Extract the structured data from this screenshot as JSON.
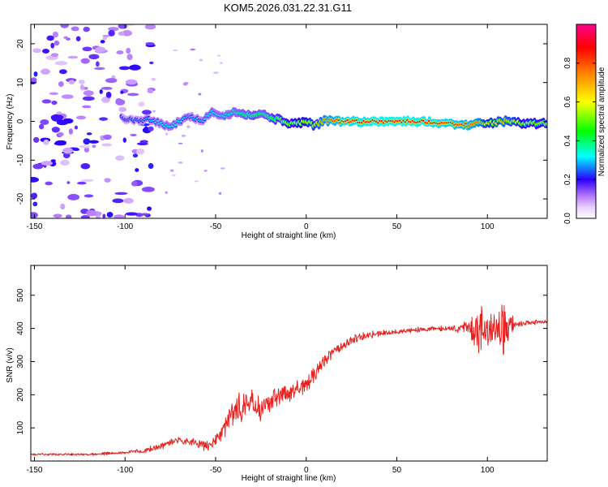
{
  "figure_title": "KOM5.2026.031.22.31.G11",
  "chart_data": [
    {
      "type": "heatmap",
      "title": "KOM5.2026.031.22.31.G11",
      "xlabel": "Height of straight line (km)",
      "ylabel": "Frequency (Hz)",
      "xlim": [
        -152,
        133
      ],
      "ylim": [
        -25,
        25
      ],
      "xticks": [
        -150,
        -100,
        -50,
        0,
        50,
        100
      ],
      "yticks": [
        -20,
        -10,
        0,
        10,
        20
      ],
      "xtick_labels": [
        "-150",
        "-100",
        "-50",
        "0",
        "50",
        "100"
      ],
      "ytick_labels": [
        "-20",
        "-10",
        "0",
        "10",
        "20"
      ],
      "colorbar": {
        "label": "Normalized spectral amplitude",
        "range": [
          0,
          1
        ],
        "ticks": [
          0,
          0.2,
          0.4,
          0.6,
          0.8
        ],
        "tick_labels": [
          "0.0",
          "0.2",
          "0.4",
          "0.6",
          "0.8"
        ],
        "stops": [
          {
            "v": 0.0,
            "color": "#ffffff"
          },
          {
            "v": 0.06,
            "color": "#e6ccff"
          },
          {
            "v": 0.12,
            "color": "#b070ff"
          },
          {
            "v": 0.2,
            "color": "#2a00ff"
          },
          {
            "v": 0.32,
            "color": "#00ffff"
          },
          {
            "v": 0.45,
            "color": "#00ff00"
          },
          {
            "v": 0.6,
            "color": "#ffff00"
          },
          {
            "v": 0.75,
            "color": "#ff7f00"
          },
          {
            "v": 0.88,
            "color": "#ff0000"
          },
          {
            "v": 1.0,
            "color": "#ff0090"
          }
        ]
      },
      "ridge": {
        "x": [
          -102,
          -95,
          -85,
          -75,
          -65,
          -58,
          -52,
          -45,
          -40,
          -35,
          -30,
          -25,
          -20,
          -15,
          -10,
          -5,
          0,
          5,
          10,
          20,
          40,
          60,
          80,
          90,
          95,
          100,
          110,
          120,
          133
        ],
        "freq": [
          1.0,
          0.3,
          0.5,
          -1.5,
          1.5,
          0.0,
          2.5,
          1.5,
          2.5,
          2.0,
          1.5,
          2.0,
          1.0,
          0.5,
          -0.5,
          -0.5,
          0.0,
          -1.0,
          0.3,
          0.0,
          0.0,
          0.0,
          -0.5,
          -1.0,
          -0.5,
          -0.5,
          0.0,
          -0.5,
          -0.5
        ],
        "amplitude": [
          0.25,
          0.25,
          0.3,
          0.35,
          0.3,
          0.3,
          0.35,
          0.35,
          0.38,
          0.4,
          0.45,
          0.4,
          0.45,
          0.5,
          0.55,
          0.55,
          0.6,
          0.65,
          0.75,
          0.85,
          0.9,
          0.9,
          0.85,
          0.8,
          0.75,
          0.6,
          0.7,
          0.55,
          0.55
        ]
      },
      "noise_region": {
        "x_range": [
          -152,
          -85
        ],
        "freq_range": [
          -25,
          25
        ],
        "amplitude_range": [
          0.06,
          0.22
        ]
      }
    },
    {
      "type": "line",
      "xlabel": "Height of straight line (km)",
      "ylabel": "SNR (v/v)",
      "xlim": [
        -152,
        133
      ],
      "ylim": [
        0,
        590
      ],
      "xticks": [
        -150,
        -100,
        -50,
        0,
        50,
        100
      ],
      "yticks": [
        100,
        200,
        300,
        400,
        500
      ],
      "xtick_labels": [
        "-150",
        "-100",
        "-50",
        "0",
        "50",
        "100"
      ],
      "ytick_labels": [
        "100",
        "200",
        "300",
        "400",
        "500"
      ],
      "series": [
        {
          "name": "SNR",
          "color": "#e8201e",
          "trend_x": [
            -152,
            -120,
            -100,
            -90,
            -80,
            -70,
            -60,
            -55,
            -50,
            -45,
            -40,
            -35,
            -30,
            -25,
            -20,
            -15,
            -10,
            -5,
            0,
            5,
            10,
            15,
            20,
            25,
            30,
            40,
            50,
            60,
            70,
            80,
            90,
            95,
            100,
            105,
            110,
            115,
            120,
            133
          ],
          "trend_y": [
            20,
            20,
            25,
            30,
            45,
            65,
            50,
            45,
            60,
            100,
            150,
            160,
            170,
            155,
            180,
            200,
            200,
            220,
            230,
            270,
            300,
            330,
            350,
            365,
            375,
            385,
            390,
            395,
            400,
            400,
            400,
            395,
            395,
            400,
            405,
            410,
            415,
            420
          ],
          "noise_x": [
            -152,
            -100,
            -80,
            -60,
            -50,
            -40,
            -30,
            -20,
            0,
            20,
            40,
            80,
            90,
            95,
            100,
            105,
            110,
            115,
            133
          ],
          "noise_amp": [
            4,
            6,
            15,
            18,
            25,
            60,
            70,
            50,
            35,
            20,
            12,
            10,
            35,
            120,
            60,
            80,
            140,
            15,
            8
          ]
        }
      ]
    }
  ]
}
